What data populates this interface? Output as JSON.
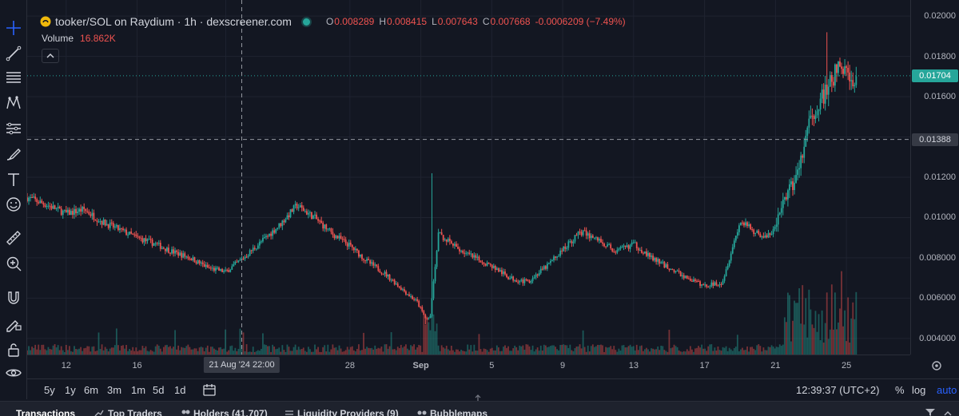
{
  "legend": {
    "title": "tooker/SOL on Raydium · 1h · dexscreener.com",
    "open_label": "O",
    "open": "0.008289",
    "high_label": "H",
    "high": "0.008415",
    "low_label": "L",
    "low": "0.007643",
    "close_label": "C",
    "close": "0.007668",
    "change": "-0.0006209 (−7.49%)",
    "volume_label": "Volume",
    "volume_value": "16.862K"
  },
  "price_axis": {
    "current_price": "0.01704",
    "crosshair_price": "0.01388",
    "current_color": "#26a69a"
  },
  "time_axis": {
    "crosshair_time": "21 Aug '24   22:00"
  },
  "range_buttons": [
    "5y",
    "1y",
    "6m",
    "3m",
    "1m",
    "5d",
    "1d"
  ],
  "footer": {
    "clock": "12:39:37 (UTC+2)",
    "percent": "%",
    "log": "log",
    "auto": "auto"
  },
  "bottom_tabs": [
    "Transactions",
    "Top Traders",
    "Holders (41,707)",
    "Liquidity Providers (9)",
    "Bubblemaps"
  ],
  "tools": [
    "crosshair-icon",
    "trendline-icon",
    "fib-lines-icon",
    "pattern-icon",
    "measure-lines-icon",
    "brush-icon",
    "text-icon",
    "emoji-icon",
    "ruler-icon",
    "zoom-in-icon",
    "magnet-icon",
    "pencil-lock-icon",
    "lock-icon",
    "eye-icon"
  ],
  "chart_data": {
    "type": "candlestick",
    "title": "tooker/SOL on Raydium · 1h · dexscreener.com",
    "y_ticks": [
      0.004,
      0.006,
      0.008,
      0.01,
      0.012,
      0.014,
      0.016,
      0.018,
      0.02
    ],
    "y_tick_labels": [
      "0.004000",
      "0.006000",
      "0.008000",
      "0.01000",
      "0.01200",
      "",
      "0.01600",
      "0.01800",
      "0.02000"
    ],
    "ylim": [
      0.0032,
      0.0208
    ],
    "x_ticks": [
      "12",
      "16",
      "21 Aug '24",
      "28",
      "Sep",
      "5",
      "9",
      "13",
      "17",
      "21",
      "25"
    ],
    "x_tick_days": [
      12,
      16,
      21,
      28,
      32,
      36,
      40,
      44,
      48,
      52,
      56
    ],
    "x_range_days": [
      9.8,
      59.6
    ],
    "series": [
      {
        "price_path_days": [
          9.8,
          11,
          12,
          13,
          14,
          15,
          16,
          17,
          18,
          19,
          20,
          21,
          22,
          23,
          24,
          25,
          26,
          27,
          28,
          29,
          30,
          31,
          31.8,
          32.2,
          32.5,
          33,
          34,
          35,
          36,
          37,
          38,
          39,
          40,
          41,
          42,
          43,
          44,
          45,
          46,
          47,
          48,
          49,
          50,
          51,
          51.5,
          52,
          52.5,
          53,
          53.5,
          54,
          54.5,
          55,
          55.5,
          56,
          56.3,
          56.6
        ],
        "price_path_values": [
          0.011,
          0.0106,
          0.0102,
          0.0104,
          0.0098,
          0.0094,
          0.009,
          0.0087,
          0.0083,
          0.008,
          0.0075,
          0.0073,
          0.008,
          0.0088,
          0.0096,
          0.0106,
          0.01,
          0.0092,
          0.0086,
          0.0078,
          0.0072,
          0.0064,
          0.0058,
          0.0051,
          0.0049,
          0.0092,
          0.0085,
          0.008,
          0.0076,
          0.007,
          0.0068,
          0.0075,
          0.0084,
          0.0093,
          0.0089,
          0.0083,
          0.0087,
          0.008,
          0.0075,
          0.007,
          0.0066,
          0.0068,
          0.0098,
          0.0092,
          0.009,
          0.0095,
          0.011,
          0.0116,
          0.013,
          0.015,
          0.0158,
          0.0164,
          0.0175,
          0.0172,
          0.0168,
          0.017
        ]
      }
    ],
    "spikes": [
      {
        "day": 32.6,
        "high": 0.0122
      },
      {
        "day": 54.9,
        "high": 0.0192
      }
    ],
    "lows": [
      {
        "day": 32.3,
        "low": 0.0047
      }
    ],
    "grid": true,
    "crosshair": {
      "day": 21.9,
      "price": 0.01388
    },
    "current_price": 0.01704
  }
}
